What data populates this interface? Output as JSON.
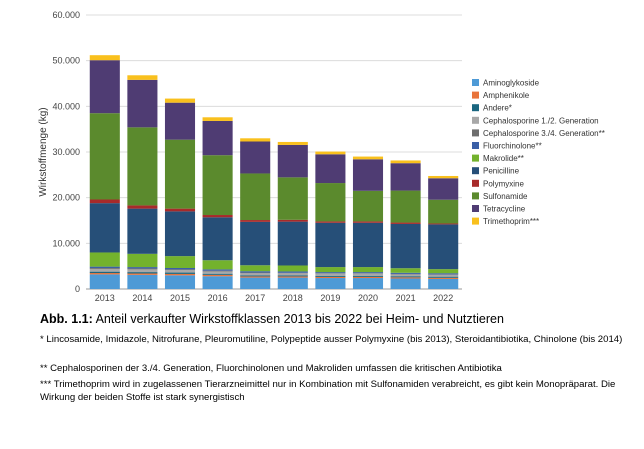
{
  "chart_data": {
    "type": "bar",
    "stacked": true,
    "ylabel": "Wirkstoffmenge (kg)",
    "ylim": [
      0,
      60000
    ],
    "yticks": [
      "0",
      "10.000",
      "20.000",
      "30.000",
      "40.000",
      "50.000",
      "60.000"
    ],
    "categories": [
      "2013",
      "2014",
      "2015",
      "2016",
      "2017",
      "2018",
      "2019",
      "2020",
      "2021",
      "2022"
    ],
    "legend_position": "right",
    "series": [
      {
        "name": "Aminoglykoside",
        "color": "#4e9ad6",
        "values": [
          3200,
          3100,
          3000,
          2800,
          2500,
          2500,
          2400,
          2400,
          2300,
          2200
        ]
      },
      {
        "name": "Amphenikole",
        "color": "#e8743b",
        "values": [
          300,
          300,
          300,
          300,
          250,
          250,
          250,
          250,
          250,
          250
        ]
      },
      {
        "name": "Andere*",
        "color": "#1a6680",
        "values": [
          300,
          300,
          300,
          250,
          250,
          250,
          250,
          250,
          250,
          250
        ]
      },
      {
        "name": "Cephalosporine 1./2. Generation",
        "color": "#a8a8a8",
        "values": [
          600,
          600,
          550,
          500,
          450,
          450,
          450,
          450,
          400,
          400
        ]
      },
      {
        "name": "Cephalosporine 3./4. Generation**",
        "color": "#6e6e6e",
        "values": [
          200,
          200,
          150,
          150,
          150,
          100,
          100,
          100,
          100,
          100
        ]
      },
      {
        "name": "Fluorchinolone**",
        "color": "#3a5fa6",
        "values": [
          300,
          300,
          300,
          300,
          300,
          300,
          250,
          250,
          250,
          250
        ]
      },
      {
        "name": "Makrolide**",
        "color": "#73b22d",
        "values": [
          3100,
          2900,
          2600,
          2000,
          1300,
          1300,
          1100,
          1100,
          1000,
          900
        ]
      },
      {
        "name": "Penicilline",
        "color": "#264f78",
        "values": [
          10800,
          9900,
          9800,
          9400,
          9500,
          9600,
          9700,
          9700,
          9700,
          9800
        ]
      },
      {
        "name": "Polymyxine",
        "color": "#a72a2a",
        "values": [
          800,
          700,
          600,
          500,
          400,
          400,
          300,
          300,
          300,
          200
        ]
      },
      {
        "name": "Sulfonamide",
        "color": "#5b8a2d",
        "values": [
          18900,
          17100,
          15100,
          13100,
          10200,
          9300,
          8400,
          6700,
          7000,
          5200
        ]
      },
      {
        "name": "Tetracycline",
        "color": "#4f3c73",
        "values": [
          11600,
          10400,
          8100,
          7500,
          7000,
          7100,
          6300,
          6900,
          6000,
          4700
        ]
      },
      {
        "name": "Trimethoprim***",
        "color": "#f9c01d",
        "values": [
          1100,
          1000,
          900,
          800,
          700,
          650,
          600,
          600,
          600,
          500
        ]
      }
    ]
  },
  "caption": {
    "figure_label": "Abb. 1.1:",
    "title": "Anteil verkaufter Wirkstoffklassen 2013 bis 2022 bei Heim- und Nutztieren",
    "note1": "* Lincosamide, Imidazole, Nitrofurane, Pleuromutiline, Polypeptide ausser Polymyxine (bis 2013), Steroidantibiotika, Chinolone (bis 2014)",
    "note2": "** Cephalosporinen der 3./4. Generation, Fluorchinolonen und Makroliden umfassen die kritischen Antibiotika",
    "note3": "*** Trimethoprim wird in zugelassenen Tierarzneimittel nur in Kombination mit Sulfonamiden verabreicht, es gibt kein Monopräparat. Die Wirkung der beiden Stoffe ist stark synergistisch"
  }
}
